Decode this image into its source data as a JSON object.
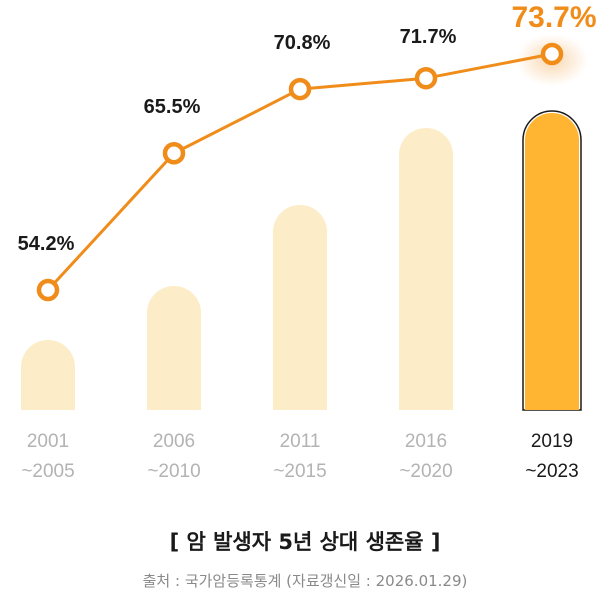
{
  "chart_data": {
    "type": "bar",
    "categories": [
      [
        "2001",
        "~2005"
      ],
      [
        "2006",
        "~2010"
      ],
      [
        "2011",
        "~2015"
      ],
      [
        "2016",
        "~2020"
      ],
      [
        "2019",
        "~2023"
      ]
    ],
    "values": [
      54.2,
      65.5,
      70.8,
      71.7,
      73.7
    ],
    "data_labels": [
      "54.2%",
      "65.5%",
      "70.8%",
      "71.7%",
      "73.7%"
    ],
    "highlight_index": 4,
    "overlay": "line",
    "title": "[ 암 발생자 5년 상대 생존율 ]",
    "source": "출처 : 국가암등록통계 (자료갱신일 : 2026.01.29)",
    "grid": false,
    "legend": "none",
    "colors": {
      "bar": "#fdecc8",
      "bar_highlight": "#ffb531",
      "line": "#f08c1a",
      "highlight_label": "#f08c1a",
      "label": "#1a1a1a",
      "category_dim": "#b3b3b3",
      "category_active": "#1a1a1a"
    }
  }
}
